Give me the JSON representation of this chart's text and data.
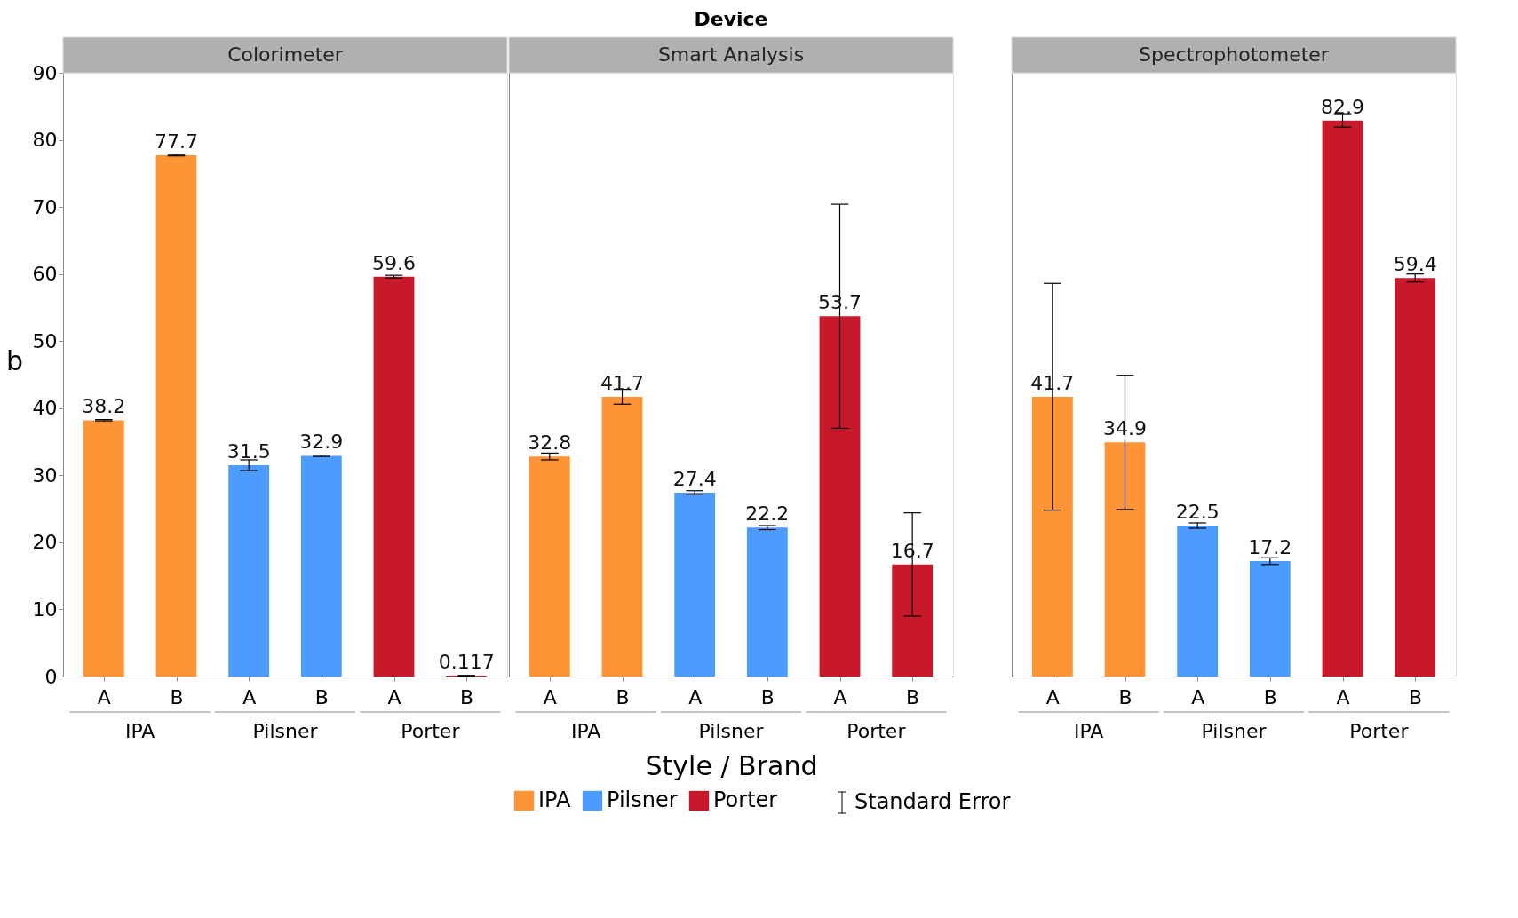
{
  "chart_data": [
    {
      "type": "bar",
      "title": "Colorimeter",
      "ylabel": "b",
      "categories": [
        "A",
        "B",
        "A",
        "B",
        "A",
        "B"
      ],
      "ylim": [
        0,
        90
      ],
      "yticks": [
        0,
        10,
        20,
        30,
        40,
        50,
        60,
        70,
        80,
        90
      ],
      "data_labels": true,
      "series": [
        {
          "name": "IPA",
          "color": "#ff9436",
          "values": [
            38.2,
            77.7,
            null,
            null,
            null,
            null
          ],
          "errors": [
            0.1,
            0.1,
            null,
            null,
            null,
            null
          ]
        },
        {
          "name": "Pilsner",
          "color": "#4c9bff",
          "values": [
            null,
            null,
            31.5,
            32.9,
            null,
            null
          ],
          "errors": [
            null,
            null,
            0.8,
            0.1,
            null,
            null
          ]
        },
        {
          "name": "Porter",
          "color": "#c8192b",
          "values": [
            null,
            null,
            null,
            null,
            59.6,
            0.117
          ],
          "errors": [
            null,
            null,
            null,
            null,
            0.2,
            0.05
          ]
        }
      ]
    },
    {
      "type": "bar",
      "title": "Smart Analysis",
      "xlabel": "Style / Brand",
      "annotations": [
        "Device",
        "Standard Error"
      ],
      "legend": "bottom",
      "tick_labels": "x",
      "categories": [
        "A",
        "B",
        "A",
        "B",
        "A",
        "B"
      ],
      "ylim": [
        0,
        90
      ],
      "yticks": [
        0,
        10,
        20,
        30,
        40,
        50,
        60,
        70,
        80,
        90
      ],
      "data_labels": true,
      "series": [
        {
          "name": "IPA",
          "color": "#ff9436",
          "values": [
            32.8,
            41.7,
            null,
            null,
            null,
            null
          ],
          "errors": [
            0.5,
            1.1,
            null,
            null,
            null,
            null
          ]
        },
        {
          "name": "Pilsner",
          "color": "#4c9bff",
          "values": [
            null,
            null,
            27.4,
            22.2,
            null,
            null
          ],
          "errors": [
            null,
            null,
            0.3,
            0.3,
            null,
            null
          ]
        },
        {
          "name": "Porter",
          "color": "#c8192b",
          "values": [
            null,
            null,
            null,
            null,
            53.7,
            16.7
          ],
          "errors": [
            null,
            null,
            null,
            null,
            16.7,
            7.7
          ]
        }
      ]
    },
    {
      "type": "bar",
      "title": "Spectrophotometer",
      "tick_labels": "x",
      "categories": [
        "A",
        "B",
        "A",
        "B",
        "A",
        "B"
      ],
      "ylim": [
        0,
        90
      ],
      "yticks": [
        0,
        10,
        20,
        30,
        40,
        50,
        60,
        70,
        80,
        90
      ],
      "data_labels": true,
      "series": [
        {
          "name": "IPA",
          "color": "#ff9436",
          "values": [
            41.7,
            34.9,
            null,
            null,
            null,
            null
          ],
          "errors": [
            16.9,
            10.0,
            null,
            null,
            null,
            null
          ]
        },
        {
          "name": "Pilsner",
          "color": "#4c9bff",
          "values": [
            null,
            null,
            22.5,
            17.2,
            null,
            null
          ],
          "errors": [
            null,
            null,
            0.4,
            0.5,
            null,
            null
          ]
        },
        {
          "name": "Porter",
          "color": "#c8192b",
          "values": [
            null,
            null,
            null,
            null,
            82.9,
            59.4
          ],
          "errors": [
            null,
            null,
            null,
            null,
            1.0,
            0.6
          ]
        }
      ]
    }
  ]
}
